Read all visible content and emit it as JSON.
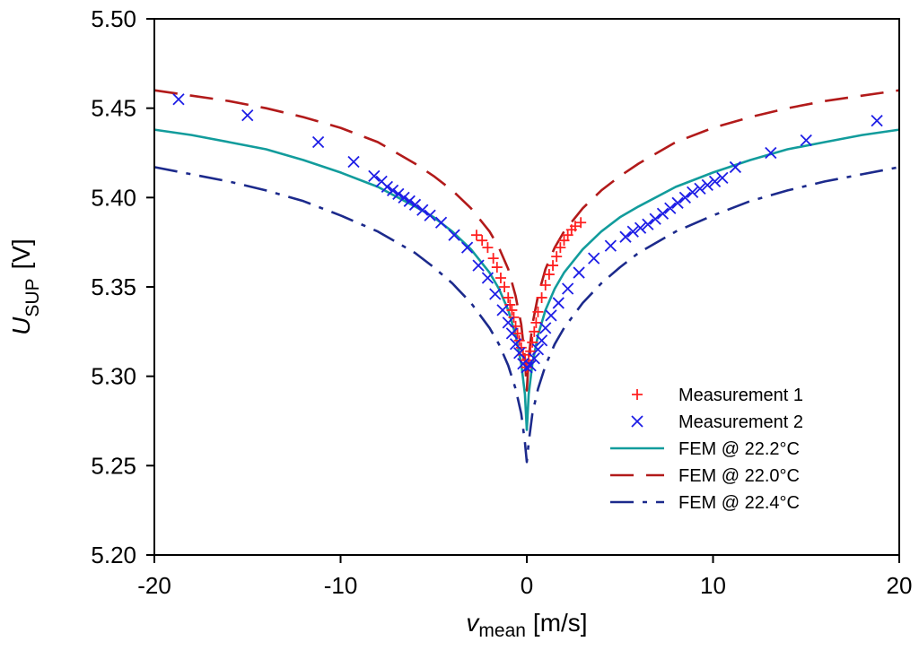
{
  "chart_data": {
    "type": "scatter",
    "title": "",
    "xlabel": {
      "main": "v",
      "sub": "mean",
      "unit": "[m/s]"
    },
    "ylabel": {
      "main": "U",
      "sub": "SUP",
      "unit": "[V]"
    },
    "xlim": [
      -20,
      20
    ],
    "ylim": [
      5.2,
      5.5
    ],
    "x_ticks": [
      -20,
      -10,
      0,
      10,
      20
    ],
    "y_ticks": [
      5.2,
      5.25,
      5.3,
      5.35,
      5.4,
      5.45,
      5.5
    ],
    "x_tick_labels": [
      "-20",
      "-10",
      "0",
      "10",
      "20"
    ],
    "y_tick_labels": [
      "5.20",
      "5.25",
      "5.30",
      "5.35",
      "5.40",
      "5.45",
      "5.50"
    ],
    "grid": false,
    "legend_position": "bottom-right",
    "series": [
      {
        "name": "Measurement 1",
        "kind": "markers",
        "marker": "plus",
        "color": "#ff2020",
        "x": [
          -2.7,
          -2.4,
          -2.1,
          -1.8,
          -1.6,
          -1.4,
          -1.2,
          -1.0,
          -0.9,
          -0.8,
          -0.7,
          -0.6,
          -0.5,
          -0.4,
          -0.3,
          -0.2,
          -0.1,
          0.0,
          0.1,
          0.2,
          0.3,
          0.4,
          0.5,
          0.6,
          0.8,
          1.0,
          1.2,
          1.4,
          1.6,
          1.8,
          2.0,
          2.2,
          2.4,
          2.6,
          2.9
        ],
        "y": [
          5.379,
          5.376,
          5.372,
          5.366,
          5.361,
          5.355,
          5.35,
          5.344,
          5.34,
          5.337,
          5.333,
          5.328,
          5.324,
          5.32,
          5.316,
          5.312,
          5.309,
          5.305,
          5.309,
          5.314,
          5.319,
          5.325,
          5.33,
          5.336,
          5.344,
          5.351,
          5.357,
          5.362,
          5.367,
          5.372,
          5.376,
          5.379,
          5.382,
          5.384,
          5.386
        ]
      },
      {
        "name": "Measurement 2",
        "kind": "markers",
        "marker": "cross",
        "color": "#1e1ee6",
        "x": [
          -18.7,
          -15.0,
          -11.2,
          -9.3,
          -8.2,
          -7.8,
          -7.5,
          -7.2,
          -6.9,
          -6.6,
          -6.3,
          -6.0,
          -5.6,
          -5.2,
          -4.6,
          -3.9,
          -3.2,
          -2.6,
          -2.1,
          -1.7,
          -1.3,
          -1.0,
          -0.8,
          -0.6,
          -0.4,
          -0.2,
          0.0,
          0.2,
          0.4,
          0.6,
          0.8,
          1.0,
          1.3,
          1.7,
          2.2,
          2.8,
          3.6,
          4.5,
          5.3,
          5.7,
          6.1,
          6.5,
          6.9,
          7.3,
          7.7,
          8.1,
          8.5,
          8.9,
          9.3,
          9.7,
          10.1,
          10.5,
          11.2,
          13.1,
          15.0,
          18.8
        ],
        "y": [
          5.455,
          5.446,
          5.431,
          5.42,
          5.412,
          5.409,
          5.406,
          5.404,
          5.402,
          5.4,
          5.398,
          5.396,
          5.393,
          5.39,
          5.386,
          5.379,
          5.372,
          5.362,
          5.355,
          5.346,
          5.337,
          5.33,
          5.324,
          5.318,
          5.313,
          5.307,
          5.305,
          5.306,
          5.31,
          5.315,
          5.32,
          5.327,
          5.334,
          5.341,
          5.349,
          5.358,
          5.366,
          5.373,
          5.378,
          5.381,
          5.383,
          5.385,
          5.388,
          5.391,
          5.394,
          5.397,
          5.4,
          5.403,
          5.405,
          5.407,
          5.409,
          5.411,
          5.417,
          5.425,
          5.432,
          5.443
        ]
      },
      {
        "name": "FEM @ 22.2°C",
        "kind": "line",
        "dash": "solid",
        "color": "#129c9c",
        "x": [
          -20,
          -18,
          -16,
          -14,
          -12,
          -10,
          -8,
          -6,
          -5,
          -4,
          -3,
          -2,
          -1.5,
          -1,
          -0.6,
          -0.3,
          -0.1,
          0,
          0.1,
          0.3,
          0.6,
          1,
          1.5,
          2,
          3,
          4,
          5,
          6,
          8,
          10,
          12,
          14,
          16,
          18,
          20
        ],
        "y": [
          5.438,
          5.435,
          5.431,
          5.427,
          5.421,
          5.414,
          5.406,
          5.395,
          5.389,
          5.381,
          5.371,
          5.358,
          5.349,
          5.337,
          5.323,
          5.307,
          5.29,
          5.27,
          5.29,
          5.307,
          5.323,
          5.337,
          5.349,
          5.358,
          5.371,
          5.381,
          5.389,
          5.395,
          5.406,
          5.414,
          5.421,
          5.427,
          5.431,
          5.435,
          5.438
        ]
      },
      {
        "name": "FEM @ 22.0°C",
        "kind": "line",
        "dash": "dashed",
        "color": "#b21a1a",
        "x": [
          -20,
          -18,
          -16,
          -14,
          -12,
          -10,
          -8,
          -6,
          -5,
          -4,
          -3,
          -2,
          -1.5,
          -1,
          -0.6,
          -0.3,
          -0.1,
          0,
          0.1,
          0.3,
          0.6,
          1,
          1.5,
          2,
          3,
          4,
          5,
          6,
          8,
          10,
          12,
          14,
          16,
          18,
          20
        ],
        "y": [
          5.46,
          5.457,
          5.454,
          5.45,
          5.445,
          5.439,
          5.431,
          5.419,
          5.412,
          5.404,
          5.394,
          5.381,
          5.372,
          5.36,
          5.345,
          5.329,
          5.31,
          5.292,
          5.31,
          5.329,
          5.345,
          5.36,
          5.372,
          5.381,
          5.394,
          5.404,
          5.412,
          5.419,
          5.431,
          5.439,
          5.445,
          5.45,
          5.454,
          5.457,
          5.46
        ]
      },
      {
        "name": "FEM @ 22.4°C",
        "kind": "line",
        "dash": "dashdot",
        "color": "#1c2a8c",
        "x": [
          -20,
          -18,
          -16,
          -14,
          -12,
          -10,
          -8,
          -6,
          -5,
          -4,
          -3,
          -2,
          -1.5,
          -1,
          -0.6,
          -0.3,
          -0.1,
          0,
          0.1,
          0.3,
          0.6,
          1,
          1.5,
          2,
          3,
          4,
          5,
          6,
          8,
          10,
          12,
          14,
          16,
          18,
          20
        ],
        "y": [
          5.417,
          5.413,
          5.409,
          5.404,
          5.398,
          5.39,
          5.381,
          5.369,
          5.361,
          5.352,
          5.341,
          5.327,
          5.318,
          5.306,
          5.293,
          5.279,
          5.263,
          5.252,
          5.263,
          5.279,
          5.293,
          5.306,
          5.318,
          5.327,
          5.341,
          5.352,
          5.361,
          5.369,
          5.381,
          5.39,
          5.398,
          5.404,
          5.409,
          5.413,
          5.417
        ]
      }
    ]
  }
}
